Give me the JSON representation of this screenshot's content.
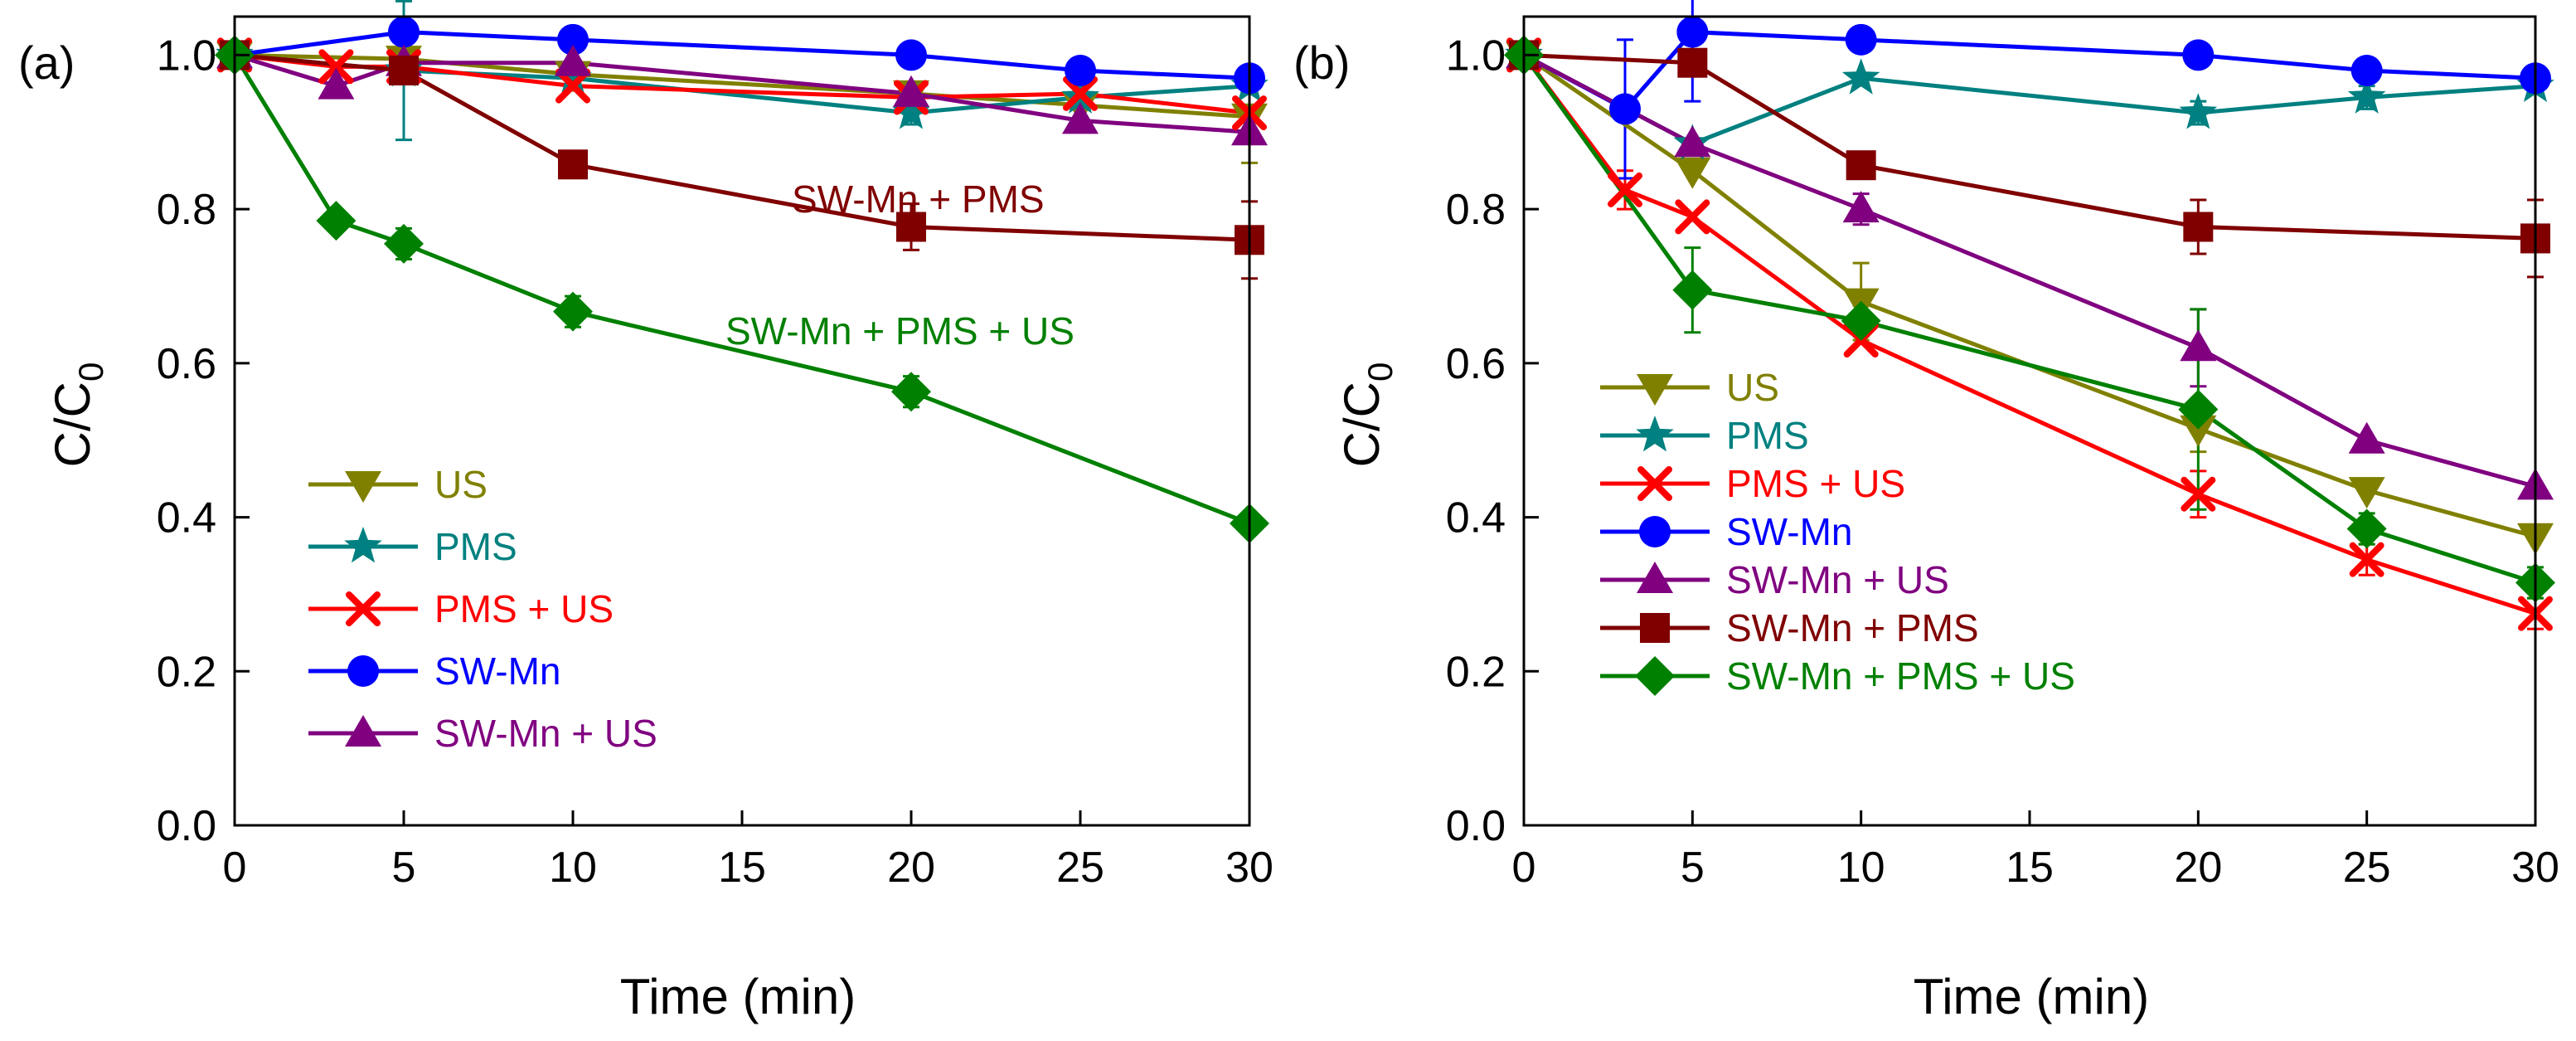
{
  "chart_data": [
    {
      "type": "line",
      "panel_label": "(a)",
      "xlabel": "Time (min)",
      "ylabel": "C/C",
      "ylabel_subscript": "0",
      "xlim": [
        0,
        30
      ],
      "ylim": [
        0,
        1.05
      ],
      "xticks": [
        0,
        5,
        10,
        15,
        20,
        25,
        30
      ],
      "yticks": [
        0.0,
        0.2,
        0.4,
        0.6,
        0.8,
        1.0
      ],
      "xtick_labels": [
        "0",
        "5",
        "10",
        "15",
        "20",
        "25",
        "30"
      ],
      "ytick_labels": [
        "0.0",
        "0.2",
        "0.4",
        "0.6",
        "0.8",
        "1.0"
      ],
      "series": [
        {
          "name": "US",
          "key": "us",
          "color": "#808000",
          "marker": "triangle-down",
          "x": [
            0,
            5,
            10,
            20,
            25,
            30
          ],
          "y": [
            1.0,
            0.995,
            0.975,
            0.95,
            0.935,
            0.92
          ],
          "err": [
            0,
            0,
            0,
            0,
            0,
            0.06
          ]
        },
        {
          "name": "PMS",
          "key": "pms",
          "color": "#008080",
          "marker": "star",
          "x": [
            0,
            5,
            10,
            20,
            25,
            30
          ],
          "y": [
            1.0,
            0.98,
            0.97,
            0.925,
            0.945,
            0.96
          ],
          "err": [
            0,
            0.09,
            0,
            0.015,
            0,
            0
          ]
        },
        {
          "name": "PMS + US",
          "key": "pms_us",
          "color": "#ff0000",
          "marker": "x",
          "x": [
            0,
            3,
            5,
            10,
            20,
            25,
            30
          ],
          "y": [
            1.0,
            0.985,
            0.985,
            0.96,
            0.945,
            0.95,
            0.925
          ],
          "err": [
            0,
            0,
            0,
            0,
            0,
            0,
            0
          ]
        },
        {
          "name": "SW-Mn",
          "key": "swmn",
          "color": "#0000ff",
          "marker": "circle",
          "x": [
            0,
            5,
            10,
            20,
            25,
            30
          ],
          "y": [
            1.0,
            1.03,
            1.02,
            1.0,
            0.98,
            0.97
          ],
          "err": [
            0,
            0,
            0,
            0,
            0,
            0
          ]
        },
        {
          "name": "SW-Mn + US",
          "key": "swmn_us",
          "color": "#800080",
          "marker": "triangle-up",
          "x": [
            0,
            3,
            5,
            10,
            20,
            25,
            30
          ],
          "y": [
            1.0,
            0.96,
            0.99,
            0.99,
            0.95,
            0.915,
            0.9
          ],
          "err": [
            0,
            0,
            0,
            0,
            0,
            0,
            0
          ]
        },
        {
          "name": "SW-Mn + PMS",
          "key": "swmn_pms",
          "color": "#800000",
          "marker": "square",
          "x": [
            0,
            5,
            10,
            20,
            30
          ],
          "y": [
            1.0,
            0.98,
            0.858,
            0.777,
            0.76
          ],
          "err": [
            0,
            0,
            0,
            0.03,
            0.05
          ]
        },
        {
          "name": "SW-Mn + PMS + US",
          "key": "swmn_pms_us",
          "color": "#008000",
          "marker": "diamond",
          "x": [
            0,
            3,
            5,
            10,
            20,
            30
          ],
          "y": [
            1.0,
            0.785,
            0.755,
            0.667,
            0.563,
            0.392
          ],
          "err": [
            0,
            0,
            0.02,
            0.02,
            0.02,
            0
          ]
        }
      ],
      "legend_keys": [
        "us",
        "pms",
        "pms_us",
        "swmn",
        "swmn_us"
      ],
      "annotations": [
        {
          "text": "SW-Mn + PMS",
          "color": "#800000"
        },
        {
          "text": "SW-Mn + PMS + US",
          "color": "#008000"
        }
      ]
    },
    {
      "type": "line",
      "panel_label": "(b)",
      "xlabel": "Time (min)",
      "ylabel": "C/C",
      "ylabel_subscript": "0",
      "xlim": [
        0,
        30
      ],
      "ylim": [
        0,
        1.05
      ],
      "xticks": [
        0,
        5,
        10,
        15,
        20,
        25,
        30
      ],
      "yticks": [
        0.0,
        0.2,
        0.4,
        0.6,
        0.8,
        1.0
      ],
      "xtick_labels": [
        "0",
        "5",
        "10",
        "15",
        "20",
        "25",
        "30"
      ],
      "ytick_labels": [
        "0.0",
        "0.2",
        "0.4",
        "0.6",
        "0.8",
        "1.0"
      ],
      "series": [
        {
          "name": "US",
          "key": "us",
          "color": "#808000",
          "marker": "triangle-down",
          "x": [
            0,
            5,
            10,
            20,
            25,
            30
          ],
          "y": [
            1.0,
            0.85,
            0.68,
            0.515,
            0.435,
            0.375
          ],
          "err": [
            0,
            0,
            0.05,
            0.03,
            0,
            0
          ]
        },
        {
          "name": "PMS",
          "key": "pms",
          "color": "#008080",
          "marker": "star",
          "x": [
            0,
            5,
            10,
            20,
            25,
            30
          ],
          "y": [
            1.0,
            0.885,
            0.97,
            0.925,
            0.945,
            0.96
          ],
          "err": [
            0,
            0,
            0,
            0.015,
            0.015,
            0
          ]
        },
        {
          "name": "PMS + US",
          "key": "pms_us",
          "color": "#ff0000",
          "marker": "x",
          "x": [
            0,
            3,
            5,
            10,
            20,
            25,
            30
          ],
          "y": [
            1.0,
            0.825,
            0.79,
            0.63,
            0.43,
            0.345,
            0.275
          ],
          "err": [
            0,
            0.025,
            0,
            0,
            0.03,
            0.02,
            0.02
          ]
        },
        {
          "name": "SW-Mn",
          "key": "swmn",
          "color": "#0000ff",
          "marker": "circle",
          "x": [
            0,
            3,
            5,
            10,
            20,
            25,
            30
          ],
          "y": [
            1.0,
            0.93,
            1.03,
            1.02,
            1.0,
            0.98,
            0.97
          ],
          "err": [
            0,
            0.09,
            0.09,
            0,
            0,
            0,
            0
          ]
        },
        {
          "name": "SW-Mn + US",
          "key": "swmn_us",
          "color": "#800080",
          "marker": "triangle-up",
          "x": [
            0,
            5,
            10,
            20,
            25,
            30
          ],
          "y": [
            1.0,
            0.885,
            0.8,
            0.62,
            0.5,
            0.44
          ],
          "err": [
            0,
            0,
            0.02,
            0.05,
            0,
            0
          ]
        },
        {
          "name": "SW-Mn + PMS",
          "key": "swmn_pms",
          "color": "#800000",
          "marker": "square",
          "x": [
            0,
            5,
            10,
            20,
            30
          ],
          "y": [
            1.0,
            0.99,
            0.857,
            0.777,
            0.762
          ],
          "err": [
            0,
            0,
            0,
            0.035,
            0.05
          ]
        },
        {
          "name": "SW-Mn + PMS + US",
          "key": "swmn_pms_us",
          "color": "#008000",
          "marker": "diamond",
          "x": [
            0,
            5,
            10,
            20,
            25,
            30
          ],
          "y": [
            1.0,
            0.695,
            0.655,
            0.54,
            0.385,
            0.315
          ],
          "err": [
            0,
            0.055,
            0.02,
            0.13,
            0.02,
            0.02
          ]
        }
      ],
      "legend_keys": [
        "us",
        "pms",
        "pms_us",
        "swmn",
        "swmn_us",
        "swmn_pms",
        "swmn_pms_us"
      ],
      "annotations": []
    }
  ]
}
